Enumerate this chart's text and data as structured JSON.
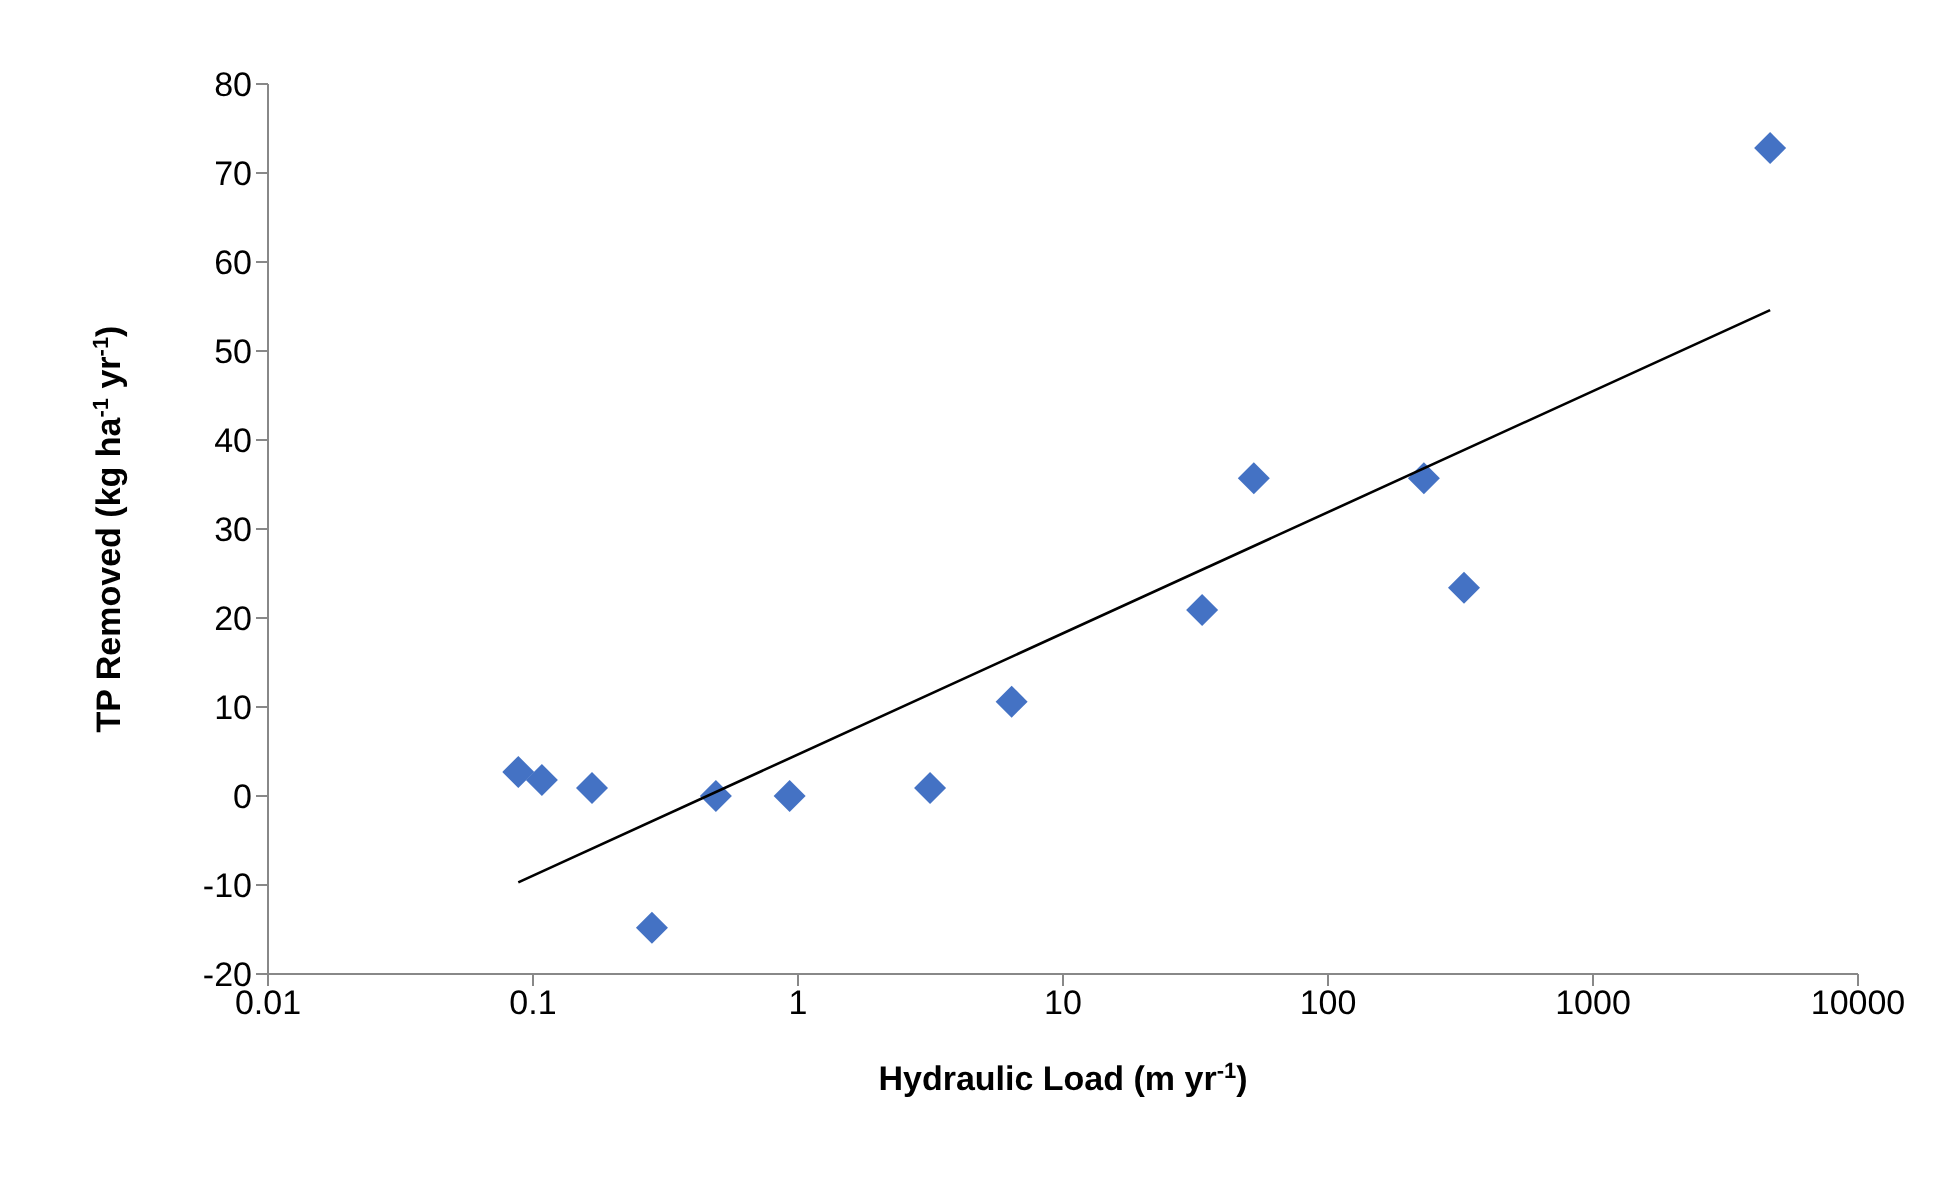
{
  "chart_data": {
    "type": "scatter",
    "xlabel": "Hydraulic Load (m yr$^{-1}$)",
    "ylabel": "TP Removed (kg ha$^{-1}$ yr$^{-1}$)",
    "log": "x",
    "xlim": [
      0.01,
      10000
    ],
    "xticks": [
      0.01,
      0.1,
      1,
      10,
      100,
      1000,
      10000
    ],
    "ylim": [
      -20,
      80
    ],
    "yticks": [
      -20,
      -10,
      0,
      10,
      20,
      30,
      40,
      50,
      60,
      70,
      80
    ],
    "series": [
      {
        "marker": "diamond",
        "color": "#4472c4",
        "x": [
          0.088,
          0.108,
          0.167,
          0.281,
          0.49,
          0.93,
          3.15,
          6.4,
          33.5,
          52.5,
          230,
          326,
          4660
        ],
        "values": [
          2.7,
          1.8,
          0.9,
          -14.8,
          0,
          0,
          0.9,
          10.6,
          20.9,
          35.7,
          35.7,
          23.4,
          72.8
        ]
      },
      {
        "type": "line",
        "marker": "none",
        "color": "#000000",
        "x": [
          0.088,
          4660
        ],
        "values": [
          -9.7,
          54.6
        ]
      }
    ]
  }
}
